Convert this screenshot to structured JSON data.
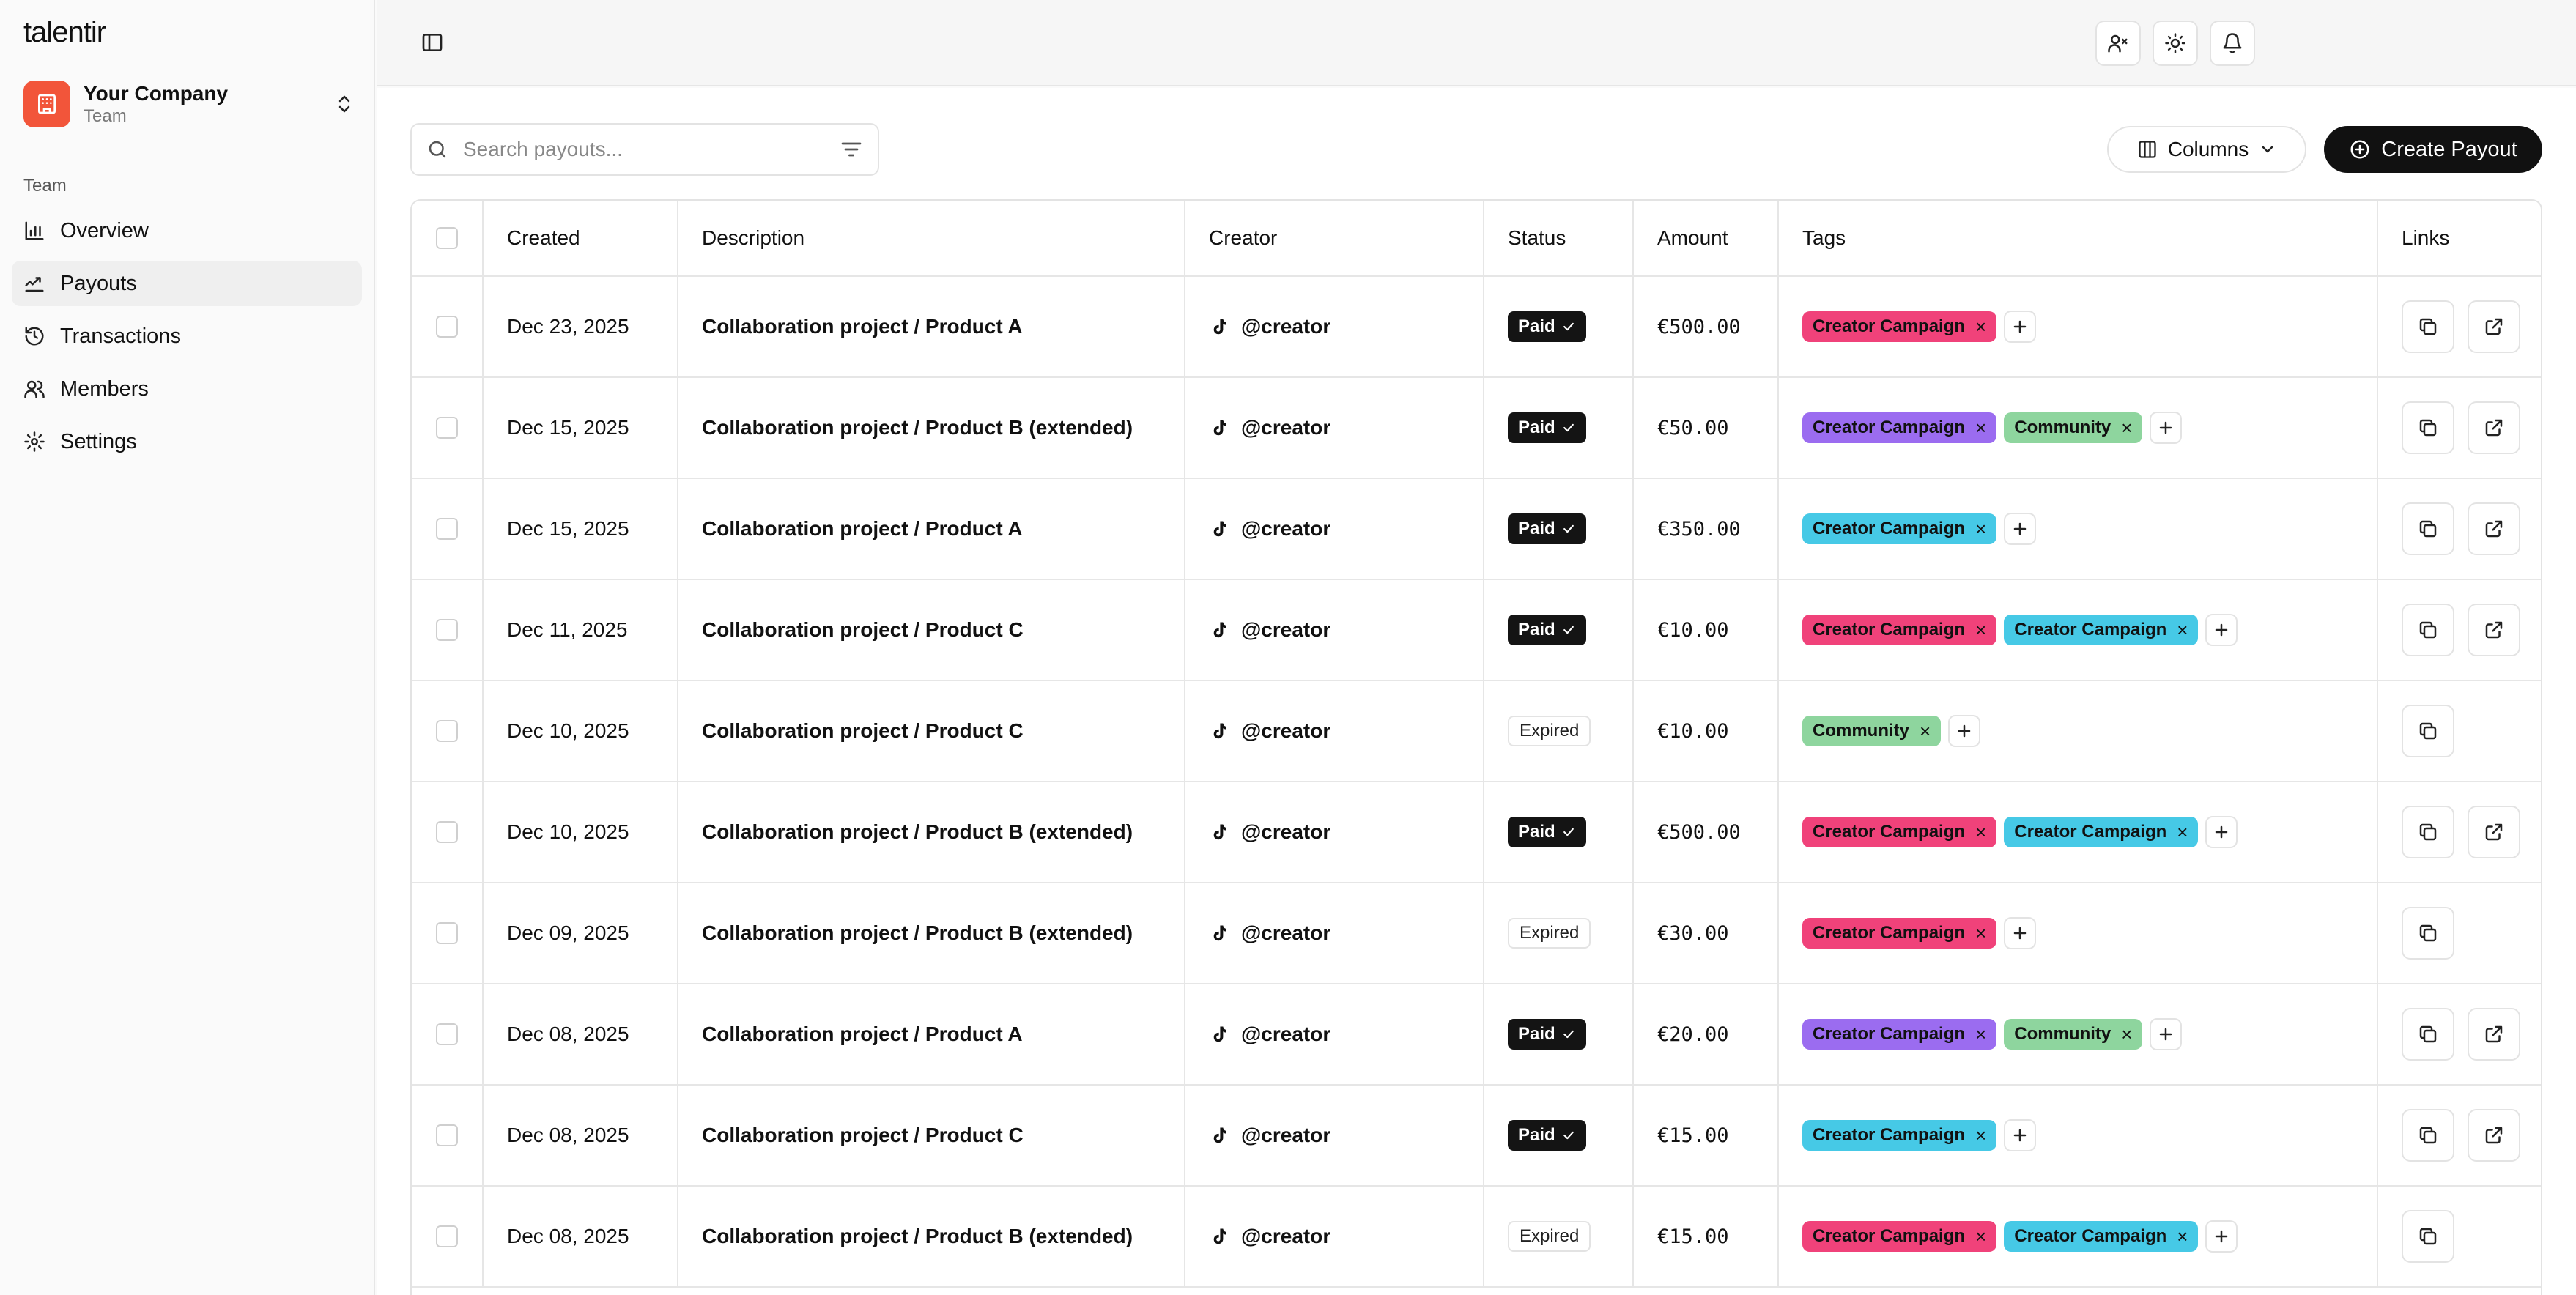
{
  "app": {
    "logo": "talentir"
  },
  "workspace": {
    "name": "Your Company",
    "subtitle": "Team"
  },
  "sidebar": {
    "section": "Team",
    "items": [
      {
        "label": "Overview",
        "icon": "chart-icon",
        "active": false
      },
      {
        "label": "Payouts",
        "icon": "payout-icon",
        "active": true
      },
      {
        "label": "Transactions",
        "icon": "history-icon",
        "active": false
      },
      {
        "label": "Members",
        "icon": "users-icon",
        "active": false
      },
      {
        "label": "Settings",
        "icon": "gear-icon",
        "active": false
      }
    ]
  },
  "toolbar": {
    "search_placeholder": "Search payouts...",
    "columns_label": "Columns",
    "create_label": "Create Payout"
  },
  "table": {
    "headers": [
      "Created",
      "Description",
      "Creator",
      "Status",
      "Amount",
      "Tags",
      "Links"
    ],
    "rows": [
      {
        "created": "Dec 23, 2025",
        "description": "Collaboration project / Product A",
        "creator": "@creator",
        "status": "Paid",
        "amount": "€500.00",
        "tags": [
          "Creator Campaign"
        ]
      },
      {
        "created": "Dec 15, 2025",
        "description": "Collaboration project / Product B (extended)",
        "creator": "@creator",
        "status": "Paid",
        "amount": "€50.00",
        "tags": [
          "Creator Campaign",
          "Community"
        ]
      },
      {
        "created": "Dec 15, 2025",
        "description": "Collaboration project / Product A",
        "creator": "@creator",
        "status": "Paid",
        "amount": "€350.00",
        "tags": [
          "Creator Campaign"
        ]
      },
      {
        "created": "Dec 11, 2025",
        "description": "Collaboration project / Product C",
        "creator": "@creator",
        "status": "Paid",
        "amount": "€10.00",
        "tags": [
          "Creator Campaign",
          "Creator Campaign"
        ]
      },
      {
        "created": "Dec 10, 2025",
        "description": "Collaboration project / Product C",
        "creator": "@creator",
        "status": "Expired",
        "amount": "€10.00",
        "tags": [
          "Community"
        ]
      },
      {
        "created": "Dec 10, 2025",
        "description": "Collaboration project / Product B (extended)",
        "creator": "@creator",
        "status": "Paid",
        "amount": "€500.00",
        "tags": [
          "Creator Campaign",
          "Creator Campaign"
        ]
      },
      {
        "created": "Dec 09, 2025",
        "description": "Collaboration project / Product B (extended)",
        "creator": "@creator",
        "status": "Expired",
        "amount": "€30.00",
        "tags": [
          "Creator Campaign"
        ]
      },
      {
        "created": "Dec 08, 2025",
        "description": "Collaboration project / Product A",
        "creator": "@creator",
        "status": "Paid",
        "amount": "€20.00",
        "tags": [
          "Creator Campaign",
          "Community"
        ]
      },
      {
        "created": "Dec 08, 2025",
        "description": "Collaboration project / Product C",
        "creator": "@creator",
        "status": "Paid",
        "amount": "€15.00",
        "tags": [
          "Creator Campaign"
        ]
      },
      {
        "created": "Dec 08, 2025",
        "description": "Collaboration project / Product B (extended)",
        "creator": "@creator",
        "status": "Expired",
        "amount": "€15.00",
        "tags": [
          "Creator Campaign",
          "Creator Campaign"
        ]
      }
    ],
    "tag_colors": [
      [
        "#f0427a"
      ],
      [
        "#9b6cf0",
        "#8ed59e"
      ],
      [
        "#46c9e6"
      ],
      [
        "#f0427a",
        "#46c9e6"
      ],
      [
        "#8ed59e"
      ],
      [
        "#f0427a",
        "#46c9e6"
      ],
      [
        "#f0427a"
      ],
      [
        "#9b6cf0",
        "#8ed59e"
      ],
      [
        "#46c9e6"
      ],
      [
        "#f0427a",
        "#46c9e6"
      ]
    ]
  },
  "colors": {
    "accent": "#f2553a",
    "primary_button": "#111111",
    "paid_badge": "#141414"
  }
}
